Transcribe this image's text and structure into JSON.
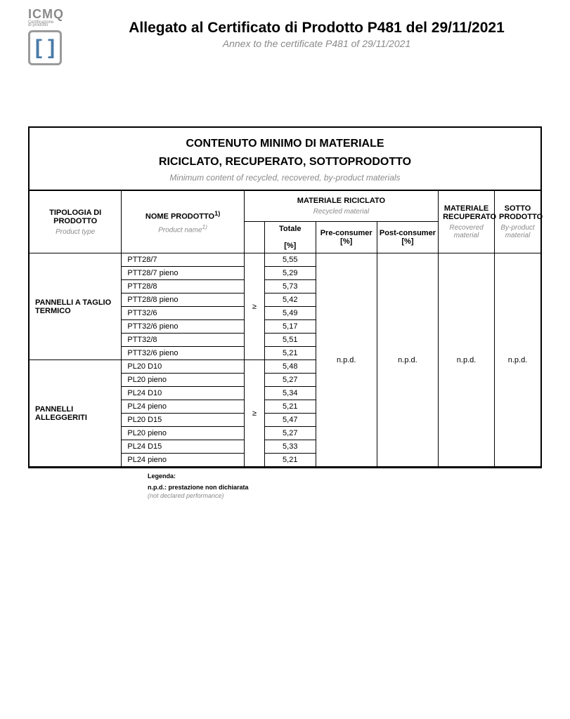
{
  "logo": {
    "name": "ICMQ",
    "sub1": "Certificazione",
    "sub2": "di prodotto"
  },
  "header": {
    "title": "Allegato al Certificato di Prodotto P481 del 29/11/2021",
    "subtitle": "Annex to the certificate P481 of 29/11/2021"
  },
  "box": {
    "title_line1": "CONTENUTO MINIMO DI MATERIALE",
    "title_line2": "RICICLATO, RECUPERATO, SOTTOPRODOTTO",
    "subtitle": "Minimum content of recycled, recovered, by-product materials"
  },
  "columns": {
    "tipologia": {
      "it": "TIPOLOGIA DI PRODOTTO",
      "en": "Product type"
    },
    "nome": {
      "it": "NOME PRODOTTO",
      "sup": "1)",
      "en": "Product name",
      "en_sup": "1)"
    },
    "riciclato": {
      "it": "MATERIALE RICICLATO",
      "en": "Recycled material"
    },
    "recuperato": {
      "it": "MATERIALE RECUPERATO",
      "en": "Recovered material"
    },
    "sotto": {
      "it": "SOTTO PRODOTTO",
      "en": "By-product material"
    },
    "sub": {
      "totale": "Totale",
      "totale_unit": "[%]",
      "pre": "Pre-consumer",
      "pre_unit": "[%]",
      "post": "Post-consumer",
      "post_unit": "[%]"
    }
  },
  "symbol": "≥",
  "npd": "n.p.d.",
  "groups": [
    {
      "label": "PANNELLI A TAGLIO TERMICO",
      "rows": [
        {
          "name": "PTT28/7",
          "val": "5,55"
        },
        {
          "name": "PTT28/7 pieno",
          "val": "5,29"
        },
        {
          "name": "PTT28/8",
          "val": "5,73"
        },
        {
          "name": "PTT28/8 pieno",
          "val": "5,42"
        },
        {
          "name": "PTT32/6",
          "val": "5,49"
        },
        {
          "name": "PTT32/6 pieno",
          "val": "5,17"
        },
        {
          "name": "PTT32/8",
          "val": "5,51"
        },
        {
          "name": "PTT32/6 pieno",
          "val": "5,21"
        }
      ]
    },
    {
      "label": "PANNELLI ALLEGGERITI",
      "rows": [
        {
          "name": "PL20 D10",
          "val": "5,48"
        },
        {
          "name": "PL20 pieno",
          "val": "5,27"
        },
        {
          "name": "PL24 D10",
          "val": "5,34"
        },
        {
          "name": "PL24 pieno",
          "val": "5,21"
        },
        {
          "name": "PL20 D15",
          "val": "5,47"
        },
        {
          "name": "PL20 pieno",
          "val": "5,27"
        },
        {
          "name": "PL24 D15",
          "val": "5,33"
        },
        {
          "name": "PL24 pieno",
          "val": "5,21"
        }
      ]
    }
  ],
  "legend": {
    "title": "Legenda:",
    "row": "n.p.d.: prestazione non dichiarata",
    "row_en": "(not declared performance)"
  },
  "style": {
    "page_bg": "#ffffff",
    "text_color": "#000000",
    "muted_color": "#8a8a8a",
    "border_color": "#000000",
    "logo_accent": "#4a7aa8",
    "col_widths_pct": [
      18,
      24,
      4,
      10,
      12,
      12,
      11,
      9
    ]
  }
}
